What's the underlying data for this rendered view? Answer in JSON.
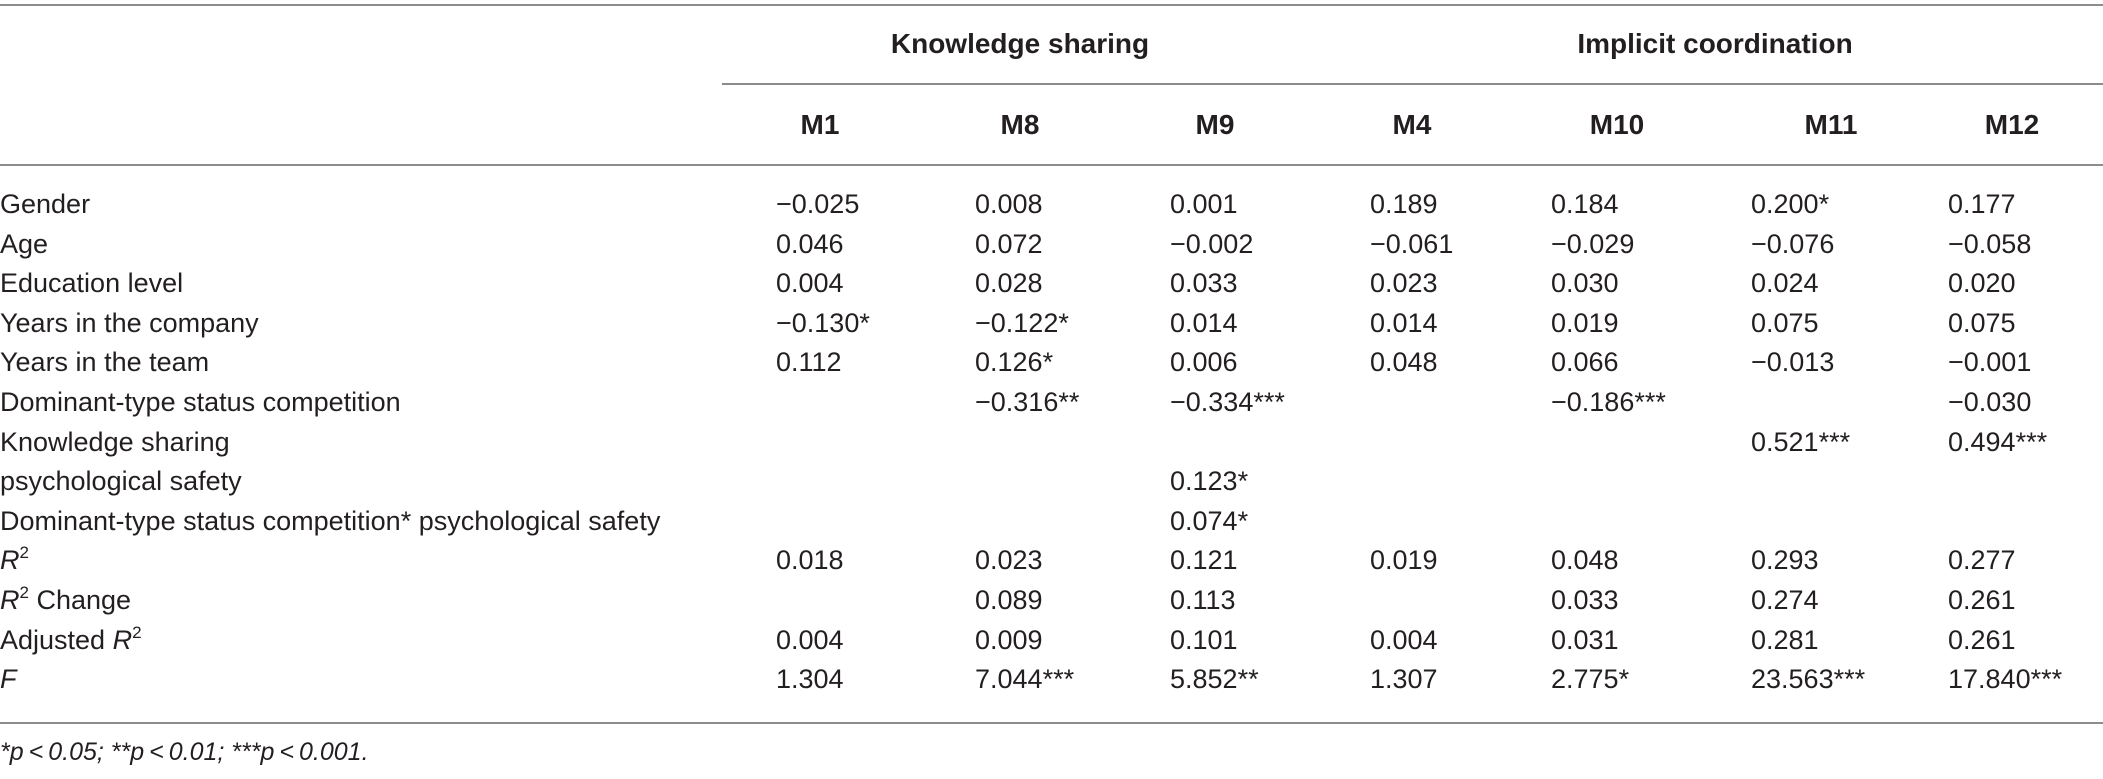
{
  "groups": {
    "knowledge_sharing": "Knowledge sharing",
    "implicit_coordination": "Implicit coordination"
  },
  "columns": [
    "M1",
    "M8",
    "M9",
    "M4",
    "M10",
    "M11",
    "M12"
  ],
  "rows": [
    {
      "label": "Gender",
      "values": [
        "−0.025",
        "0.008",
        "0.001",
        "0.189",
        "0.184",
        "0.200*",
        "0.177"
      ]
    },
    {
      "label": "Age",
      "values": [
        "0.046",
        "0.072",
        "−0.002",
        "−0.061",
        "−0.029",
        "−0.076",
        "−0.058"
      ]
    },
    {
      "label": "Education level",
      "values": [
        "0.004",
        "0.028",
        "0.033",
        "0.023",
        "0.030",
        "0.024",
        "0.020"
      ]
    },
    {
      "label": "Years in the company",
      "values": [
        "−0.130*",
        "−0.122*",
        "0.014",
        "0.014",
        "0.019",
        "0.075",
        "0.075"
      ]
    },
    {
      "label": "Years in the team",
      "values": [
        "0.112",
        "0.126*",
        "0.006",
        "0.048",
        "0.066",
        "−0.013",
        "−0.001"
      ]
    },
    {
      "label": "Dominant-type status competition",
      "values": [
        "",
        "−0.316**",
        "−0.334***",
        "",
        "−0.186***",
        "",
        "−0.030"
      ]
    },
    {
      "label": "Knowledge sharing",
      "values": [
        "",
        "",
        "",
        "",
        "",
        "0.521***",
        "0.494***"
      ]
    },
    {
      "label": "psychological safety",
      "values": [
        "",
        "",
        "0.123*",
        "",
        "",
        "",
        ""
      ]
    },
    {
      "label": "Dominant-type status competition* psychological safety",
      "values": [
        "",
        "",
        "0.074*",
        "",
        "",
        "",
        ""
      ]
    },
    {
      "label_parts": [
        "R",
        "2",
        ""
      ],
      "values": [
        "0.018",
        "0.023",
        "0.121",
        "0.019",
        "0.048",
        "0.293",
        "0.277"
      ]
    },
    {
      "label_parts": [
        "R",
        "2",
        " Change"
      ],
      "values": [
        "",
        "0.089",
        "0.113",
        "",
        "0.033",
        "0.274",
        "0.261"
      ]
    },
    {
      "label_parts": [
        "Adjusted ",
        "R",
        "2"
      ],
      "values": [
        "0.004",
        "0.009",
        "0.101",
        "0.004",
        "0.031",
        "0.281",
        "0.261"
      ]
    },
    {
      "label_parts": [
        "F"
      ],
      "values": [
        "1.304",
        "7.044***",
        "5.852**",
        "1.307",
        "2.775*",
        "23.563***",
        "17.840***"
      ]
    }
  ],
  "note": "*p < 0.05; **p < 0.01; ***p < 0.001."
}
